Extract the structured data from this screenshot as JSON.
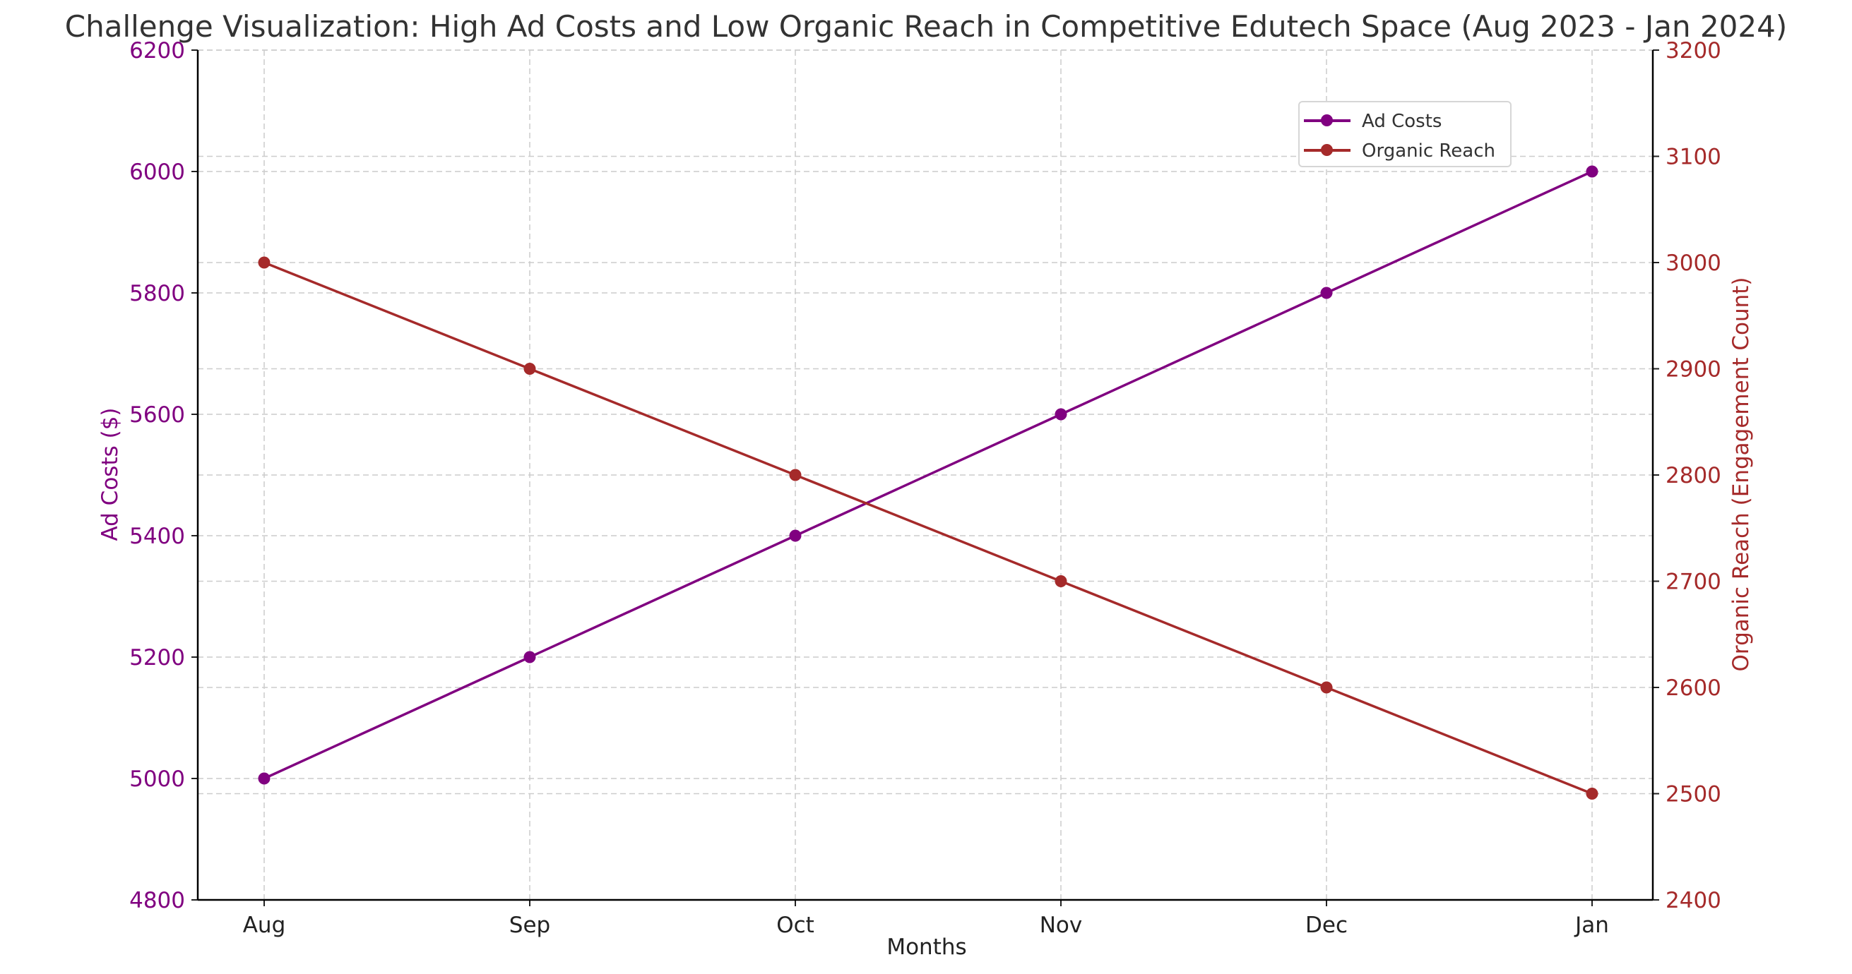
{
  "chart_data": {
    "type": "line",
    "title": "Challenge Visualization: High Ad Costs and Low Organic Reach in Competitive Edutech Space (Aug 2023 - Jan 2024)",
    "xlabel": "Months",
    "categories": [
      "Aug",
      "Sep",
      "Oct",
      "Nov",
      "Dec",
      "Jan"
    ],
    "grid": true,
    "legend_position": "top-right",
    "series": [
      {
        "name": "Ad Costs",
        "axis": "left",
        "color": "#800080",
        "values": [
          5000,
          5200,
          5400,
          5600,
          5800,
          6000
        ]
      },
      {
        "name": "Organic Reach",
        "axis": "right",
        "color": "#a52a2a",
        "values": [
          3000,
          2900,
          2800,
          2700,
          2600,
          2500
        ]
      }
    ],
    "y_left": {
      "label": "Ad Costs ($)",
      "ylim": [
        4800,
        6200
      ],
      "ticks": [
        "4800",
        "5000",
        "5200",
        "5400",
        "5600",
        "5800",
        "6000",
        "6200"
      ],
      "color": "#800080"
    },
    "y_right": {
      "label": "Organic Reach (Engagement Count)",
      "ylim": [
        2400,
        3200
      ],
      "ticks": [
        "2400",
        "2500",
        "2600",
        "2700",
        "2800",
        "2900",
        "3000",
        "3100",
        "3200"
      ],
      "color": "#a52a2a"
    }
  }
}
